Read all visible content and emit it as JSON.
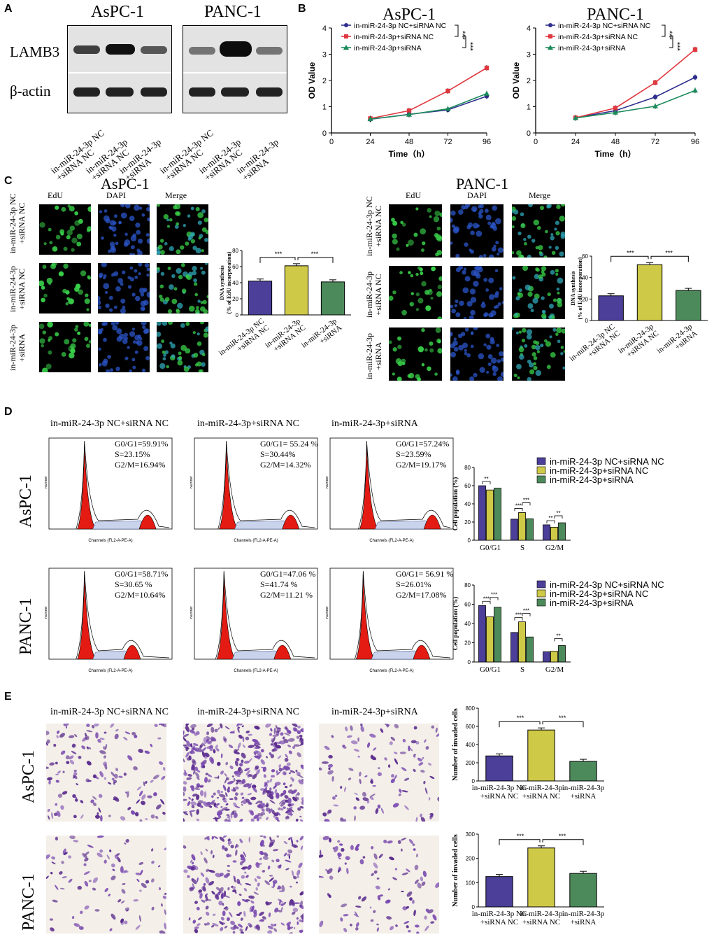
{
  "panels": [
    "A",
    "B",
    "C",
    "D",
    "E"
  ],
  "western": {
    "cells": [
      "AsPC-1",
      "PANC-1"
    ],
    "proteins": [
      "LAMB3",
      "β-actin"
    ],
    "lanes": [
      "in-miR-24-3p NC\n+siRNA NC",
      "in-miR-24-3p\n+siRNA NC",
      "in-miR-24-3p\n+siRNA",
      "in-miR-24-3p NC\n+siRNA NC",
      "in-miR-24-3p\n+siRNA NC",
      "in-miR-24-3p\n+siRNA"
    ]
  },
  "groups": {
    "g1": "in-miR-24-3p NC+siRNA NC",
    "g2": "in-miR-24-3p+siRNA NC",
    "g3": "in-miR-24-3p+siRNA"
  },
  "colors": {
    "g1_line": "#2f2f8f",
    "g2_line": "#e0383f",
    "g3_line": "#1a8a5a",
    "g1_bar": "#4b3f99",
    "g2_bar": "#cfc948",
    "g3_bar": "#4d8a5b",
    "edu": "#39d24a",
    "dapi": "#2b56c9"
  },
  "edu": {
    "cells": [
      "AsPC-1",
      "PANC-1"
    ],
    "channels": [
      "EdU",
      "DAPI",
      "Merge"
    ],
    "rows": [
      "in-miR-24-3p NC\n+siRNA NC",
      "in-miR-24-3p\n+siRNA NC",
      "in-miR-24-3p\n+siRNA"
    ]
  },
  "flow": {
    "cells": [
      "AsPC-1",
      "PANC-1"
    ],
    "stats": [
      [
        "G0/G1=59.91%\nS=23.15%\nG2/M=16.94%",
        "G0/G1= 55.24 %\nS=30.44%\nG2/M=14.32%",
        "G0/G1=57.24%\nS=23.59%\nG2/M=19.17%"
      ],
      [
        "G0/G1=58.71%\nS=30.65 %\nG2/M=10.64%",
        "G0/G1=47.06 %\nS=41.74 %\nG2/M=11.21 %",
        "G0/G1= 56.91 %\nS=26.01%\nG2/M=17.08%"
      ]
    ],
    "xlabel": "Channels (FL2-A-PE-A)",
    "ylabel": "Number"
  },
  "invasion": {
    "cells": [
      "AsPC-1",
      "PANC-1"
    ],
    "titles": [
      "in-miR-24-3p NC+siRNA NC",
      "in-miR-24-3p+siRNA NC",
      "in-miR-24-3p+siRNA"
    ]
  },
  "chart_data": [
    {
      "type": "line",
      "title": "AsPC-1",
      "xlabel": "Time（h）",
      "ylabel": "OD Value",
      "x": [
        24,
        48,
        72,
        96
      ],
      "xlim": [
        0,
        96
      ],
      "ylim": [
        0,
        4
      ],
      "xticks": [
        0,
        24,
        48,
        72,
        96
      ],
      "yticks": [
        0,
        1,
        2,
        3,
        4
      ],
      "series": [
        {
          "name": "in-miR-24-3p NC+siRNA NC",
          "values": [
            0.52,
            0.71,
            0.88,
            1.4
          ]
        },
        {
          "name": "in-miR-24-3p+siRNA NC",
          "values": [
            0.55,
            0.85,
            1.6,
            2.48
          ]
        },
        {
          "name": "in-miR-24-3p+siRNA",
          "values": [
            0.53,
            0.7,
            0.92,
            1.5
          ]
        }
      ],
      "significance": [
        "***",
        "***"
      ]
    },
    {
      "type": "line",
      "title": "PANC-1",
      "xlabel": "Time（h）",
      "ylabel": "OD Value",
      "x": [
        24,
        48,
        72,
        96
      ],
      "xlim": [
        0,
        96
      ],
      "ylim": [
        0,
        4
      ],
      "xticks": [
        0,
        24,
        48,
        72,
        96
      ],
      "yticks": [
        0,
        1,
        2,
        3,
        4
      ],
      "series": [
        {
          "name": "in-miR-24-3p NC+siRNA NC",
          "values": [
            0.58,
            0.85,
            1.37,
            2.12
          ]
        },
        {
          "name": "in-miR-24-3p+siRNA NC",
          "values": [
            0.58,
            0.95,
            1.92,
            3.18
          ]
        },
        {
          "name": "in-miR-24-3p+siRNA",
          "values": [
            0.57,
            0.78,
            1.02,
            1.62
          ]
        }
      ],
      "significance": [
        "***",
        "***"
      ]
    },
    {
      "type": "bar",
      "ylabel": "DNA synthesis\n(% of EdU incorporation)",
      "categories": [
        "in-miR-24-3p NC\n+siRNA NC",
        "in-miR-24-3p\n+siRNA NC",
        "in-miR-24-3p\n+siRNA"
      ],
      "values": [
        42,
        61,
        41
      ],
      "ylim": [
        0,
        80
      ],
      "yticks": [
        0,
        20,
        40,
        60,
        80
      ],
      "significance": [
        "***",
        "***"
      ]
    },
    {
      "type": "bar",
      "ylabel": "DNA synthesis\n(% of EdU incorporation)",
      "categories": [
        "in-miR-24-3p NC\n+siRNA NC",
        "in-miR-24-3p\n+siRNA NC",
        "in-miR-24-3p\n+siRNA"
      ],
      "values": [
        23,
        52,
        28
      ],
      "ylim": [
        0,
        60
      ],
      "yticks": [
        0,
        20,
        40,
        60
      ],
      "significance": [
        "***",
        "***"
      ]
    },
    {
      "type": "bar",
      "ylabel": "Cell population (%)",
      "categories": [
        "G0/G1",
        "S",
        "G2/M"
      ],
      "ylim": [
        0,
        80
      ],
      "yticks": [
        0,
        20,
        40,
        60,
        80
      ],
      "series": [
        {
          "name": "in-miR-24-3p NC+siRNA NC",
          "values": [
            59.91,
            23.15,
            16.94
          ]
        },
        {
          "name": "in-miR-24-3p+siRNA NC",
          "values": [
            55.24,
            30.44,
            14.32
          ]
        },
        {
          "name": "in-miR-24-3p+siRNA",
          "values": [
            57.24,
            23.59,
            19.17
          ]
        }
      ],
      "significance": [
        "**",
        "***",
        "***",
        "**",
        "**"
      ]
    },
    {
      "type": "bar",
      "ylabel": "Cell population (%)",
      "categories": [
        "G0/G1",
        "S",
        "G2/M"
      ],
      "ylim": [
        0,
        80
      ],
      "yticks": [
        0,
        20,
        40,
        60,
        80
      ],
      "series": [
        {
          "name": "in-miR-24-3p NC+siRNA NC",
          "values": [
            58.71,
            30.65,
            10.64
          ]
        },
        {
          "name": "in-miR-24-3p+siRNA NC",
          "values": [
            47.06,
            41.74,
            11.21
          ]
        },
        {
          "name": "in-miR-24-3p+siRNA",
          "values": [
            56.91,
            26.01,
            17.08
          ]
        }
      ],
      "significance": [
        "***",
        "***",
        "***",
        "***",
        "**"
      ]
    },
    {
      "type": "bar",
      "ylabel": "Number of invaded cells",
      "categories": [
        "in-miR-24-3p NC\n+siRNA NC",
        "in-miR-24-3p\n+siRNA NC",
        "in-miR-24-3p\n+siRNA"
      ],
      "values": [
        275,
        560,
        215
      ],
      "ylim": [
        0,
        800
      ],
      "yticks": [
        0,
        200,
        400,
        600,
        800
      ],
      "significance": [
        "***",
        "***"
      ]
    },
    {
      "type": "bar",
      "ylabel": "Number of invaded cells",
      "categories": [
        "in-miR-24-3p NC\n+siRNA NC",
        "in-miR-24-3p\n+siRNA NC",
        "in-miR-24-3p\n+siRNA"
      ],
      "values": [
        125,
        243,
        138
      ],
      "ylim": [
        0,
        300
      ],
      "yticks": [
        0,
        100,
        200,
        300
      ],
      "significance": [
        "***",
        "***"
      ]
    }
  ]
}
